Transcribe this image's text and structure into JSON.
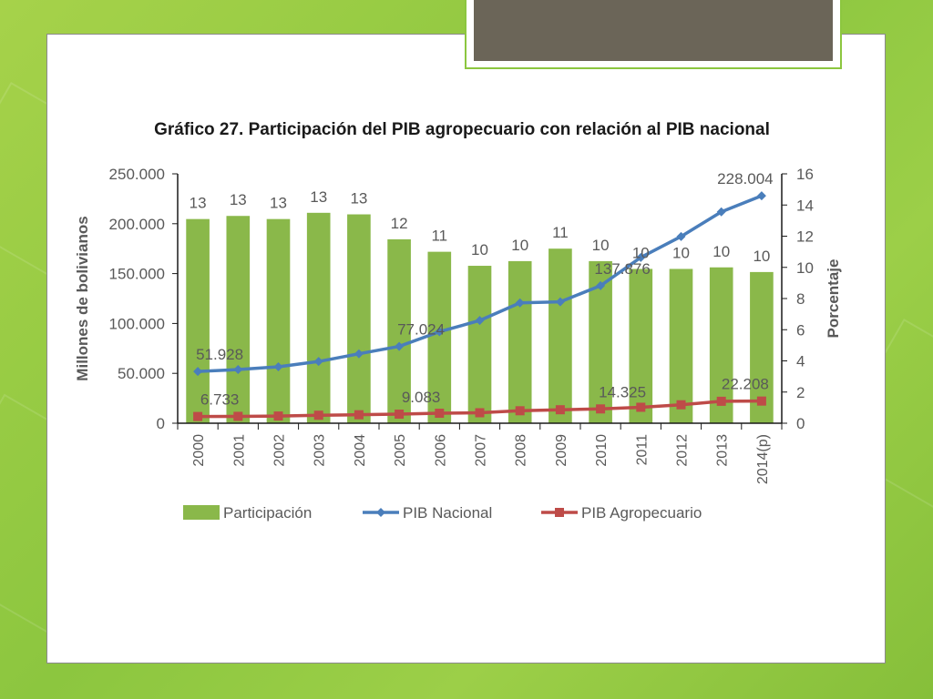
{
  "chart_data": {
    "type": "bar",
    "title": "Gráfico 27. Participación del PIB agropecuario con relación al PIB nacional",
    "categories": [
      "2000",
      "2001",
      "2002",
      "2003",
      "2004",
      "2005",
      "2006",
      "2007",
      "2008",
      "2009",
      "2010",
      "2011",
      "2012",
      "2013",
      "2014(p)"
    ],
    "ylabel_left": "Millones de bolivianos",
    "ylabel_right": "Porcentaje",
    "ylim_left": [
      0,
      250000
    ],
    "ylim_right": [
      0,
      16
    ],
    "yticks_left": [
      "0",
      "50.000",
      "100.000",
      "150.000",
      "200.000",
      "250.000"
    ],
    "yticks_right": [
      "0",
      "2",
      "4",
      "6",
      "8",
      "10",
      "12",
      "14",
      "16"
    ],
    "series": [
      {
        "name": "Participación",
        "type": "bar",
        "axis": "right",
        "color": "#8ab84a",
        "values": [
          13.1,
          13.3,
          13.1,
          13.5,
          13.4,
          11.8,
          11.0,
          10.1,
          10.4,
          11.2,
          10.4,
          9.9,
          9.9,
          10.0,
          9.7
        ],
        "labels": [
          "13",
          "13",
          "13",
          "13",
          "13",
          "12",
          "11",
          "10",
          "10",
          "11",
          "10",
          "10",
          "10",
          "10",
          "10"
        ]
      },
      {
        "name": "PIB Nacional",
        "type": "line",
        "axis": "left",
        "color": "#4a7ebb",
        "marker": "diamond",
        "values": [
          51928,
          53800,
          56600,
          61900,
          69600,
          77024,
          91700,
          103000,
          120700,
          121700,
          137876,
          166200,
          187200,
          211900,
          228004
        ],
        "annotations": [
          {
            "index": 0,
            "text": "51.928"
          },
          {
            "index": 5,
            "text": "77.024"
          },
          {
            "index": 10,
            "text": "137.876"
          },
          {
            "index": 14,
            "text": "228.004"
          }
        ]
      },
      {
        "name": "PIB Agropecuario",
        "type": "line",
        "axis": "left",
        "color": "#be4b48",
        "marker": "square",
        "values": [
          6733,
          6900,
          7200,
          8000,
          8500,
          9083,
          10000,
          10500,
          12500,
          13500,
          14325,
          16000,
          18500,
          22000,
          22208
        ],
        "annotations": [
          {
            "index": 0,
            "text": "6.733"
          },
          {
            "index": 5,
            "text": "9.083"
          },
          {
            "index": 10,
            "text": "14.325"
          },
          {
            "index": 14,
            "text": "22.208"
          }
        ]
      }
    ],
    "legend_position": "bottom",
    "grid": false
  }
}
